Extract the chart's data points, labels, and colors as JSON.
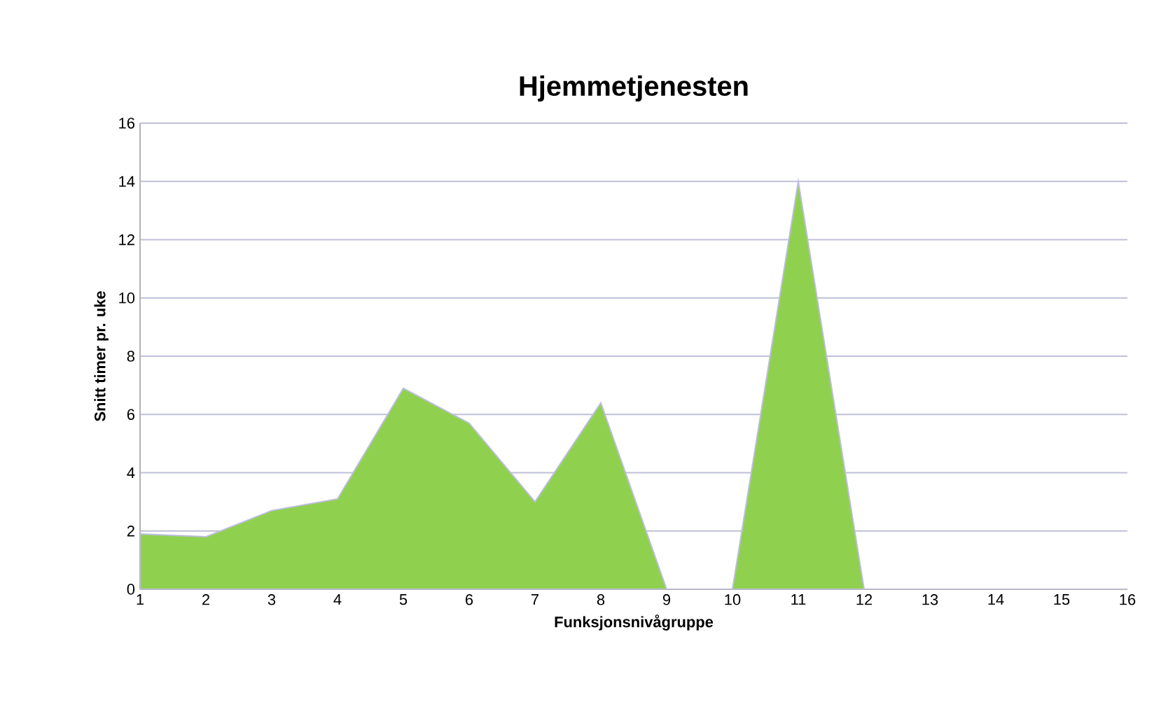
{
  "chart_data": {
    "type": "area",
    "title": "Hjemmetjenesten",
    "xlabel": "Funksjonsnivågruppe",
    "ylabel": "Snitt timer pr. uke",
    "x": [
      1,
      2,
      3,
      4,
      5,
      6,
      7,
      8,
      9,
      10,
      11,
      12,
      13,
      14,
      15,
      16
    ],
    "series": [
      {
        "color": "#8fd14f",
        "values": [
          1.9,
          1.8,
          2.7,
          3.1,
          6.9,
          5.7,
          3.0,
          6.4,
          0,
          0,
          14,
          0,
          0,
          0,
          0,
          0
        ]
      }
    ],
    "xlim": [
      1,
      16
    ],
    "xticks": [
      1,
      2,
      3,
      4,
      5,
      6,
      7,
      8,
      9,
      10,
      11,
      12,
      13,
      14,
      15,
      16
    ],
    "ylim": [
      0,
      16
    ],
    "yticks": [
      0,
      2,
      4,
      6,
      8,
      10,
      12,
      14,
      16
    ],
    "grid": "y"
  }
}
